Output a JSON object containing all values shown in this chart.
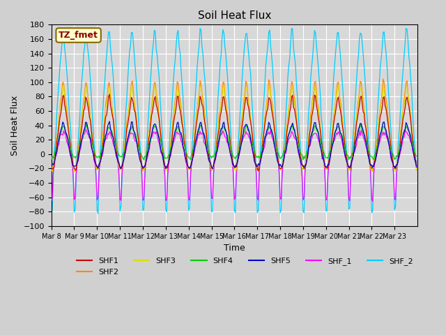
{
  "title": "Soil Heat Flux",
  "ylabel": "Soil Heat Flux",
  "xlabel": "Time",
  "ylim": [
    -100,
    180
  ],
  "background_color": "#d0d0d0",
  "plot_bg_color": "#d8d8d8",
  "series": [
    {
      "name": "SHF1",
      "color": "#cc0000"
    },
    {
      "name": "SHF2",
      "color": "#ff8800"
    },
    {
      "name": "SHF3",
      "color": "#dddd00"
    },
    {
      "name": "SHF4",
      "color": "#00cc00"
    },
    {
      "name": "SHF5",
      "color": "#0000cc"
    },
    {
      "name": "SHF_1",
      "color": "#ff00ff"
    },
    {
      "name": "SHF_2",
      "color": "#00ccff"
    }
  ],
  "xtick_labels": [
    "Mar 8",
    "Mar 9",
    "Mar 10",
    "Mar 11",
    "Mar 12",
    "Mar 13",
    "Mar 14",
    "Mar 15",
    "Mar 16",
    "Mar 17",
    "Mar 18",
    "Mar 19",
    "Mar 20",
    "Mar 21",
    "Mar 22",
    "Mar 23"
  ],
  "annotation_text": "TZ_fmet",
  "annotation_bg": "#ffffcc",
  "annotation_border": "#886600",
  "annotation_text_color": "#880000",
  "num_days": 16
}
